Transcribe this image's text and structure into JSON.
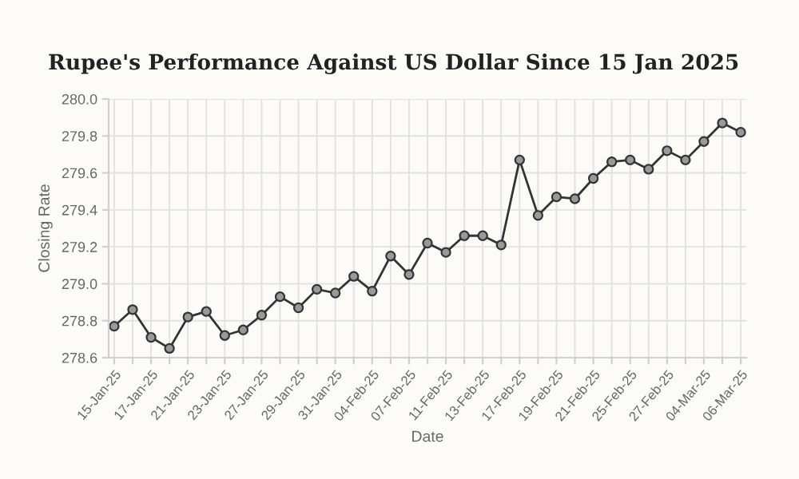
{
  "chart_data": {
    "type": "line",
    "title": "Rupee's Performance Against US Dollar Since 15 Jan 2025",
    "xlabel": "Date",
    "ylabel": "Closing Rate",
    "categories": [
      "15-Jan-25",
      null,
      "17-Jan-25",
      null,
      "21-Jan-25",
      null,
      "23-Jan-25",
      null,
      "27-Jan-25",
      null,
      "29-Jan-25",
      null,
      "31-Jan-25",
      null,
      "04-Feb-25",
      null,
      "07-Feb-25",
      null,
      "11-Feb-25",
      null,
      "13-Feb-25",
      null,
      "17-Feb-25",
      null,
      "19-Feb-25",
      null,
      "21-Feb-25",
      null,
      "25-Feb-25",
      null,
      "27-Feb-25",
      null,
      "04-Mar-25",
      null,
      "06-Mar-25"
    ],
    "series": [
      {
        "color": "#333333",
        "values": [
          278.77,
          278.86,
          278.71,
          278.65,
          278.82,
          278.85,
          278.72,
          278.75,
          278.83,
          278.93,
          278.87,
          278.97,
          278.95,
          279.04,
          278.96,
          279.15,
          279.05,
          279.22,
          279.17,
          279.26,
          279.26,
          279.21,
          279.67,
          279.37,
          279.47,
          279.46,
          279.57,
          279.66,
          279.67,
          279.62,
          279.72,
          279.67,
          279.77,
          279.87,
          279.82
        ]
      }
    ],
    "ylim": [
      278.6,
      280.0
    ],
    "yticks": [
      {
        "value": 278.6,
        "label": "278.6"
      },
      {
        "value": 278.8,
        "label": "278.8"
      },
      {
        "value": 279.0,
        "label": "279.0"
      },
      {
        "value": 279.2,
        "label": "279.2"
      },
      {
        "value": 279.4,
        "label": "279.4"
      },
      {
        "value": 279.6,
        "label": "279.6"
      },
      {
        "value": 279.8,
        "label": "279.8"
      },
      {
        "value": 280.0,
        "label": "280.0"
      }
    ],
    "grid": true,
    "marker": "circle",
    "line_style": "solid",
    "legend": false
  }
}
